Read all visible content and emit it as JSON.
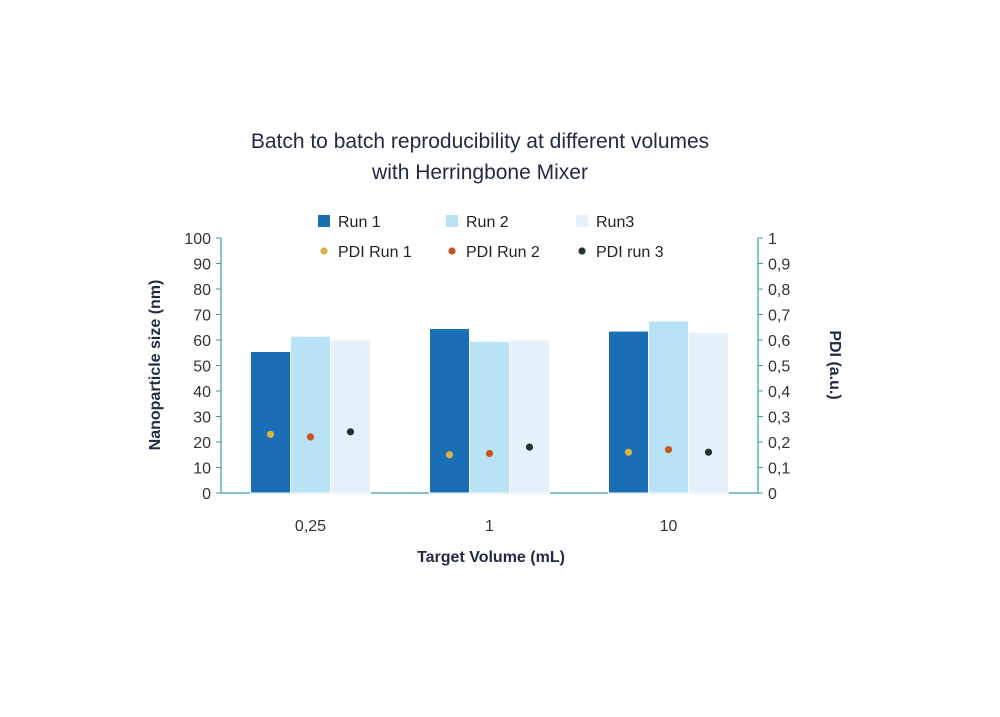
{
  "chart_data": {
    "type": "bar",
    "title_lines": [
      "Batch to batch reproducibility at different volumes",
      "with Herringbone Mixer"
    ],
    "xlabel": "Target Volume (mL)",
    "ylabel": "Nanoparticle size (nm)",
    "y2label": "PDI (a.u.)",
    "categories": [
      "0,25",
      "1",
      "10"
    ],
    "ylim": [
      0,
      100
    ],
    "y_ticks": [
      "0",
      "10",
      "20",
      "30",
      "40",
      "50",
      "60",
      "70",
      "80",
      "90",
      "100"
    ],
    "y2lim": [
      0,
      1
    ],
    "y2_ticks": [
      "0",
      "0,1",
      "0,2",
      "0,3",
      "0,4",
      "0,5",
      "0,6",
      "0,7",
      "0,8",
      "0,9",
      "1"
    ],
    "grid": false,
    "legend_position": "top",
    "series": [
      {
        "name": "Run 1",
        "kind": "bar",
        "axis": "left",
        "color": "#1a6eb5",
        "values": [
          55.5,
          64.5,
          63.5
        ]
      },
      {
        "name": "Run 2",
        "kind": "bar",
        "axis": "left",
        "color": "#b9e2f6",
        "values": [
          61.5,
          59.5,
          67.5
        ]
      },
      {
        "name": "Run3",
        "kind": "bar",
        "axis": "left",
        "color": "#e4f1fb",
        "values": [
          60,
          60,
          63
        ]
      },
      {
        "name": "PDI Run 1",
        "kind": "scatter",
        "axis": "right",
        "color": "#d8b440",
        "values": [
          0.23,
          0.15,
          0.16
        ]
      },
      {
        "name": "PDI Run 2",
        "kind": "scatter",
        "axis": "right",
        "color": "#c8561c",
        "values": [
          0.22,
          0.155,
          0.17
        ]
      },
      {
        "name": "PDI run 3",
        "kind": "scatter",
        "axis": "right",
        "color": "#22332e",
        "values": [
          0.24,
          0.18,
          0.16
        ]
      }
    ],
    "colors": {
      "axis": "#3a9aa8",
      "text": "#1f2a44",
      "bar_outline": "#ffffff"
    }
  }
}
